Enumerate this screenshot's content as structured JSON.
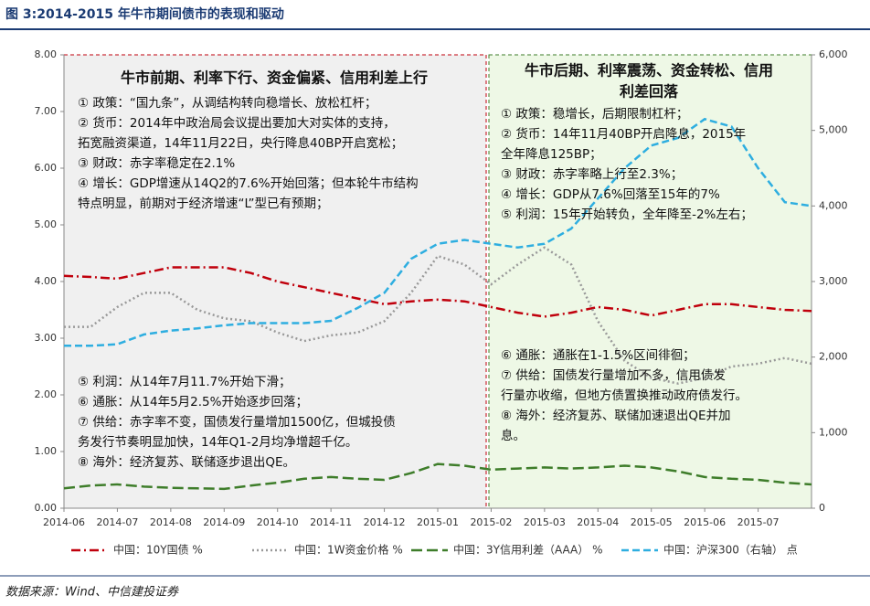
{
  "chart_data": {
    "type": "line",
    "title": "图 3:2014-2015 年牛市期间债市的表现和驱动",
    "source": "数据来源：Wind、中信建投证券",
    "categories": [
      "2014-06",
      null,
      "2014-07",
      null,
      "2014-08",
      null,
      "2014-09",
      null,
      "2014-10",
      null,
      "2014-11",
      null,
      "2014-12",
      null,
      "2015-01",
      null,
      "2015-02",
      null,
      "2015-03",
      null,
      "2015-04",
      null,
      "2015-05",
      null,
      "2015-06",
      null,
      "2015-07",
      null,
      null
    ],
    "ylim": [
      0,
      8
    ],
    "yticks": [
      {
        "value": 0,
        "label": "0.00"
      },
      {
        "value": 1,
        "label": "1.00"
      },
      {
        "value": 2,
        "label": "2.00"
      },
      {
        "value": 3,
        "label": "3.00"
      },
      {
        "value": 4,
        "label": "4.00"
      },
      {
        "value": 5,
        "label": "5.00"
      },
      {
        "value": 6,
        "label": "6.00"
      },
      {
        "value": 7,
        "label": "7.00"
      },
      {
        "value": 8,
        "label": "8.00"
      }
    ],
    "y2lim": [
      0,
      6000
    ],
    "y2ticks": [
      0,
      {
        "value": 1000,
        "label": "1,000"
      },
      {
        "value": 2000,
        "label": "2,000"
      },
      {
        "value": 3000,
        "label": "3,000"
      },
      {
        "value": 4000,
        "label": "4,000"
      },
      {
        "value": 5000,
        "label": "5,000"
      },
      {
        "value": 6000,
        "label": "6,000"
      }
    ],
    "legend": "bottom",
    "series": [
      {
        "name": "中国：10Y国债 %",
        "color": "#c0000c",
        "values": [
          4.1,
          4.08,
          4.05,
          4.15,
          4.25,
          4.25,
          4.25,
          4.15,
          4.0,
          3.9,
          3.8,
          3.7,
          3.6,
          3.65,
          3.68,
          3.65,
          3.55,
          3.45,
          3.38,
          3.45,
          3.55,
          3.5,
          3.4,
          3.5,
          3.6,
          3.6,
          3.55,
          3.5,
          3.48
        ]
      },
      {
        "name": "中国：1W资金价格 %",
        "color": "#999999",
        "values": [
          3.2,
          3.2,
          3.55,
          3.8,
          3.8,
          3.5,
          3.35,
          3.3,
          3.1,
          2.95,
          3.05,
          3.1,
          3.3,
          3.8,
          4.45,
          4.3,
          3.95,
          4.3,
          4.6,
          4.3,
          3.3,
          2.6,
          2.3,
          2.2,
          2.3,
          2.5,
          2.55,
          2.65,
          2.55
        ]
      },
      {
        "name": "中国：3Y信用利差（AAA） %",
        "color": "#3e7d2a",
        "values": [
          0.35,
          0.4,
          0.42,
          0.38,
          0.36,
          0.35,
          0.34,
          0.4,
          0.45,
          0.52,
          0.55,
          0.52,
          0.5,
          0.62,
          0.78,
          0.75,
          0.68,
          0.7,
          0.72,
          0.7,
          0.72,
          0.75,
          0.72,
          0.65,
          0.55,
          0.52,
          0.5,
          0.45,
          0.42
        ]
      },
      {
        "name": "中国：沪深300（右轴） 点",
        "color": "#2eaee0",
        "axis": "y2",
        "values": [
          2150,
          2150,
          2170,
          2300,
          2350,
          2380,
          2420,
          2450,
          2450,
          2450,
          2480,
          2650,
          2850,
          3300,
          3500,
          3550,
          3500,
          3450,
          3500,
          3700,
          4100,
          4500,
          4800,
          4900,
          5150,
          5050,
          4500,
          4050,
          4000
        ]
      }
    ],
    "annotations": [
      {
        "title": [
          "牛市前期、利率下行、资金偏紧、信用利差上行"
        ],
        "lines": [
          "① 政策：“国九条”，从调结构转向稳增长、放松杠杆；",
          "② 货币：2014年中政治局会议提出要加大对实体的支持，",
          "拓宽融资渠道，14年11月22日，央行降息40BP开启宽松；",
          "③ 财政：赤字率稳定在2.1%",
          "④ 增长：GDP增速从14Q2的7.6%开始回落；但本轮牛市结构",
          "特点明显，前期对于经济增速“L”型已有预期；"
        ]
      },
      {
        "lines": [
          "⑤ 利润：从14年7月11.7%开始下滑；",
          "⑥ 通胀：从14年5月2.5%开始逐步回落；",
          "⑦ 供给：赤字率不变，国债发行量增加1500亿，但城投债",
          "务发行节奏明显加快，14年Q1-2月均净增超千亿。",
          "⑧ 海外：经济复苏、联储逐步退出QE。"
        ]
      },
      {
        "title": [
          "牛市后期、利率震荡、资金转松、信用",
          "利差回落"
        ],
        "lines": [
          "① 政策：稳增长，后期限制杠杆；",
          "② 货币：14年11月40BP开启降息，2015年",
          "全年降息125BP；",
          "③ 财政：赤字率略上行至2.3%；",
          "④ 增长：GDP从7.6%回落至15年的7%",
          "⑤ 利润：15年开始转负，全年降至-2%左右；"
        ]
      },
      {
        "lines": [
          "⑥ 通胀：通胀在1-1.5%区间徘徊；",
          "⑦ 供给：国债发行量增加不多，信用债发",
          "行量亦收缩，但地方债置换推动政府债发行。",
          "⑧ 海外：经济复苏、联储加速退出QE并加",
          "息。"
        ]
      }
    ]
  }
}
